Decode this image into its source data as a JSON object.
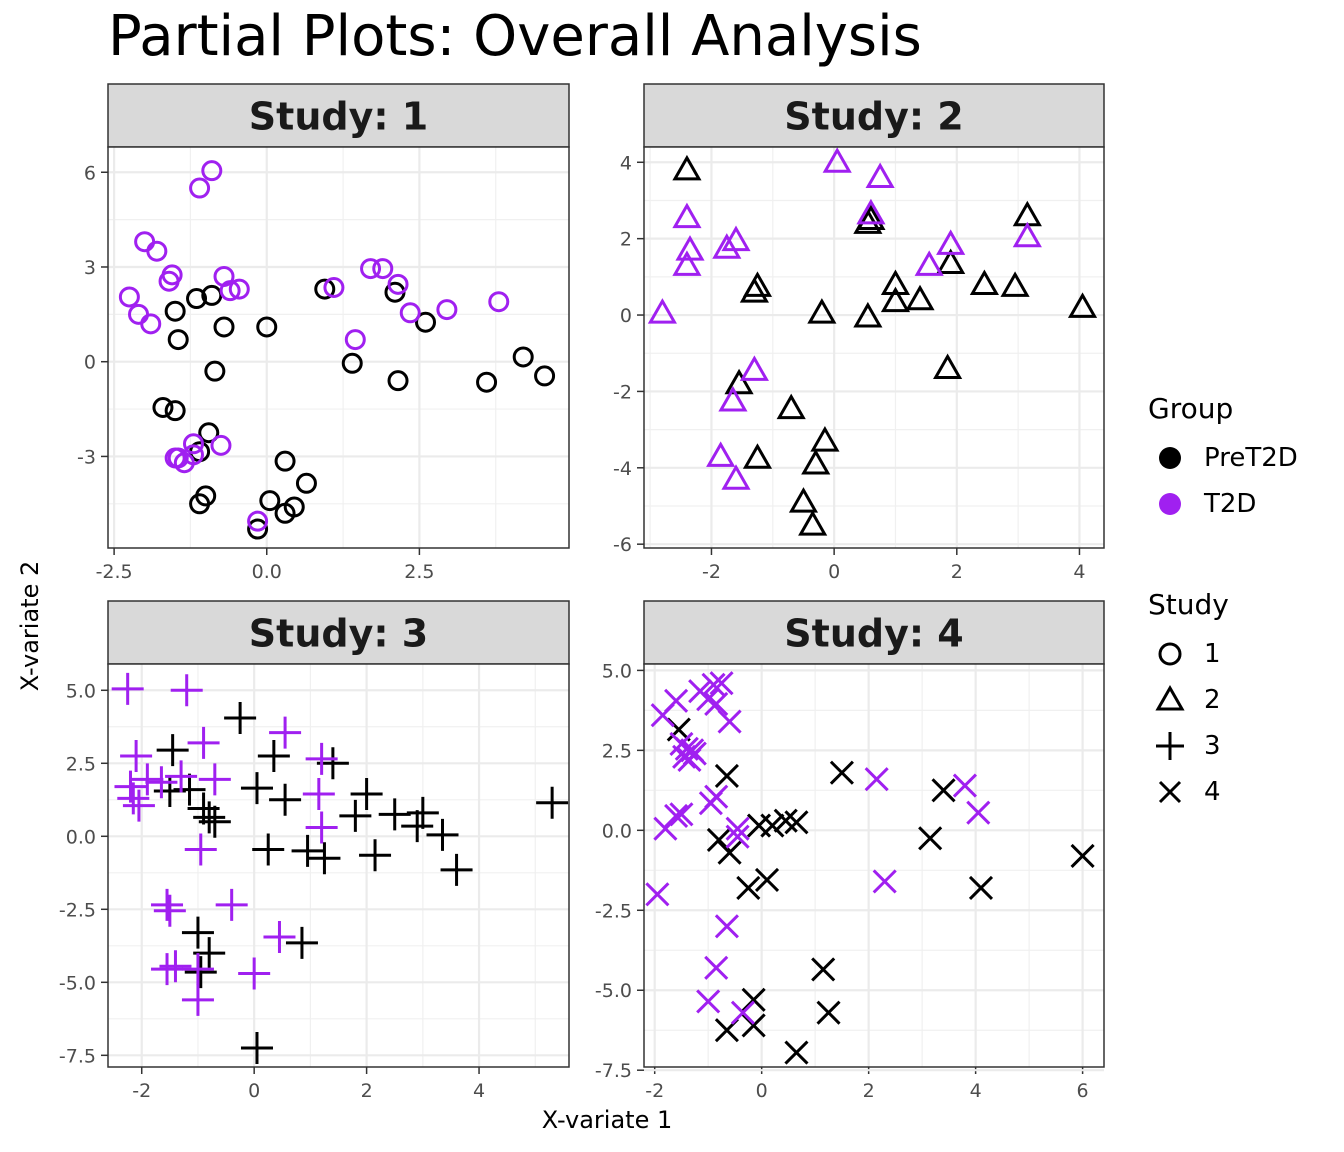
{
  "title": "Partial Plots: Overall Analysis",
  "xlabel": "X-variate 1",
  "ylabel": "X-variate 2",
  "colors": {
    "PreT2D": "#000000",
    "T2D": "#A020F0"
  },
  "legend": {
    "group": {
      "title": "Group",
      "items": [
        {
          "label": "PreT2D",
          "color": "#000000"
        },
        {
          "label": "T2D",
          "color": "#A020F0"
        }
      ]
    },
    "study": {
      "title": "Study",
      "items": [
        {
          "label": "1",
          "shape": "circle"
        },
        {
          "label": "2",
          "shape": "triangle"
        },
        {
          "label": "3",
          "shape": "plus"
        },
        {
          "label": "4",
          "shape": "cross"
        }
      ]
    }
  },
  "chart_data": [
    {
      "type": "scatter",
      "title": "Study: 1",
      "shape": "circle",
      "xlim": [
        -2.6,
        4.95
      ],
      "ylim": [
        -5.9,
        6.8
      ],
      "xticks": [
        -2.5,
        0,
        2.5
      ],
      "xtick_labels": [
        "-2.5",
        "0.0",
        "2.5"
      ],
      "yticks": [
        -3,
        0,
        3,
        6
      ],
      "ytick_labels": [
        "-3",
        "0",
        "3",
        "6"
      ],
      "series": [
        {
          "name": "PreT2D",
          "points": [
            [
              -1.15,
              2.0
            ],
            [
              -0.9,
              2.1
            ],
            [
              -0.7,
              1.1
            ],
            [
              -1.5,
              1.6
            ],
            [
              -1.45,
              0.7
            ],
            [
              0.0,
              1.1
            ],
            [
              0.95,
              2.3
            ],
            [
              2.1,
              2.2
            ],
            [
              2.6,
              1.25
            ],
            [
              1.4,
              -0.05
            ],
            [
              2.15,
              -0.6
            ],
            [
              3.6,
              -0.65
            ],
            [
              4.2,
              0.15
            ],
            [
              4.55,
              -0.45
            ],
            [
              -0.85,
              -0.3
            ],
            [
              -1.7,
              -1.45
            ],
            [
              -1.5,
              -1.55
            ],
            [
              -0.95,
              -2.25
            ],
            [
              -1.1,
              -2.85
            ],
            [
              0.3,
              -3.15
            ],
            [
              0.65,
              -3.85
            ],
            [
              0.05,
              -4.4
            ],
            [
              0.45,
              -4.6
            ],
            [
              0.3,
              -4.8
            ],
            [
              -1.0,
              -4.25
            ],
            [
              -1.1,
              -4.5
            ],
            [
              -0.15,
              -5.3
            ]
          ]
        },
        {
          "name": "T2D",
          "points": [
            [
              -1.1,
              5.5
            ],
            [
              -0.9,
              6.05
            ],
            [
              -2.0,
              3.8
            ],
            [
              -1.8,
              3.5
            ],
            [
              -1.55,
              2.75
            ],
            [
              -1.6,
              2.55
            ],
            [
              -0.7,
              2.7
            ],
            [
              -0.6,
              2.25
            ],
            [
              -0.45,
              2.3
            ],
            [
              -2.25,
              2.05
            ],
            [
              -2.1,
              1.5
            ],
            [
              -1.9,
              1.2
            ],
            [
              1.1,
              2.35
            ],
            [
              1.7,
              2.95
            ],
            [
              1.9,
              2.95
            ],
            [
              2.15,
              2.45
            ],
            [
              2.35,
              1.55
            ],
            [
              2.95,
              1.65
            ],
            [
              3.8,
              1.9
            ],
            [
              1.45,
              0.7
            ],
            [
              -1.2,
              -2.6
            ],
            [
              -0.75,
              -2.65
            ],
            [
              -1.2,
              -2.95
            ],
            [
              -1.45,
              -3.05
            ],
            [
              -1.35,
              -3.2
            ],
            [
              -1.5,
              -3.05
            ],
            [
              -0.15,
              -5.05
            ]
          ]
        }
      ]
    },
    {
      "type": "scatter",
      "title": "Study: 2",
      "shape": "triangle",
      "xlim": [
        -3.1,
        4.4
      ],
      "ylim": [
        -6.1,
        4.4
      ],
      "xticks": [
        -2,
        0,
        2,
        4
      ],
      "xtick_labels": [
        "-2",
        "0",
        "2",
        "4"
      ],
      "yticks": [
        -6,
        -4,
        -2,
        0,
        2,
        4
      ],
      "ytick_labels": [
        "-6",
        "-4",
        "-2",
        "0",
        "2",
        "4"
      ],
      "series": [
        {
          "name": "PreT2D",
          "points": [
            [
              -2.4,
              3.8
            ],
            [
              0.55,
              2.4
            ],
            [
              0.6,
              2.5
            ],
            [
              3.15,
              2.6
            ],
            [
              -1.3,
              0.6
            ],
            [
              -1.25,
              0.75
            ],
            [
              1.0,
              0.8
            ],
            [
              1.0,
              0.35
            ],
            [
              1.4,
              0.4
            ],
            [
              -0.2,
              0.05
            ],
            [
              0.55,
              -0.05
            ],
            [
              2.45,
              0.8
            ],
            [
              2.95,
              0.75
            ],
            [
              4.05,
              0.2
            ],
            [
              1.9,
              1.35
            ],
            [
              1.85,
              -1.4
            ],
            [
              -1.55,
              -1.8
            ],
            [
              -0.7,
              -2.45
            ],
            [
              -0.15,
              -3.3
            ],
            [
              -0.3,
              -3.9
            ],
            [
              -1.25,
              -3.75
            ],
            [
              -0.5,
              -4.9
            ],
            [
              -0.35,
              -5.5
            ]
          ]
        },
        {
          "name": "T2D",
          "points": [
            [
              0.05,
              4.0
            ],
            [
              0.75,
              3.6
            ],
            [
              0.6,
              2.65
            ],
            [
              -2.4,
              2.55
            ],
            [
              -2.35,
              1.7
            ],
            [
              -2.4,
              1.3
            ],
            [
              -1.75,
              1.75
            ],
            [
              -1.6,
              1.95
            ],
            [
              1.9,
              1.85
            ],
            [
              3.15,
              2.05
            ],
            [
              1.55,
              1.3
            ],
            [
              -2.8,
              0.05
            ],
            [
              -1.3,
              -1.45
            ],
            [
              -1.65,
              -2.25
            ],
            [
              -1.85,
              -3.7
            ],
            [
              -1.6,
              -4.3
            ]
          ]
        }
      ]
    },
    {
      "type": "scatter",
      "title": "Study: 3",
      "shape": "plus",
      "xlim": [
        -2.6,
        5.6
      ],
      "ylim": [
        -7.9,
        5.9
      ],
      "xticks": [
        -2,
        0,
        2,
        4
      ],
      "xtick_labels": [
        "-2",
        "0",
        "2",
        "4"
      ],
      "yticks": [
        -7.5,
        -5,
        -2.5,
        0,
        2.5,
        5
      ],
      "ytick_labels": [
        "-7.5",
        "-5.0",
        "-2.5",
        "0.0",
        "2.5",
        "5.0"
      ],
      "series": [
        {
          "name": "PreT2D",
          "points": [
            [
              -0.25,
              4.05
            ],
            [
              -1.45,
              2.95
            ],
            [
              0.35,
              2.75
            ],
            [
              1.4,
              2.5
            ],
            [
              -1.5,
              1.55
            ],
            [
              -1.15,
              1.6
            ],
            [
              0.05,
              1.65
            ],
            [
              0.55,
              1.25
            ],
            [
              -0.9,
              0.95
            ],
            [
              -0.8,
              0.65
            ],
            [
              -0.7,
              0.5
            ],
            [
              2.0,
              1.45
            ],
            [
              1.8,
              0.7
            ],
            [
              2.5,
              0.75
            ],
            [
              3.0,
              0.8
            ],
            [
              2.9,
              0.35
            ],
            [
              3.35,
              0.05
            ],
            [
              3.6,
              -1.15
            ],
            [
              0.25,
              -0.45
            ],
            [
              0.95,
              -0.5
            ],
            [
              1.25,
              -0.75
            ],
            [
              2.15,
              -0.65
            ],
            [
              5.3,
              1.15
            ],
            [
              -1.0,
              -3.3
            ],
            [
              -0.8,
              -4.0
            ],
            [
              -0.95,
              -4.65
            ],
            [
              0.85,
              -3.65
            ],
            [
              0.05,
              -7.25
            ]
          ]
        },
        {
          "name": "T2D",
          "points": [
            [
              -2.25,
              5.05
            ],
            [
              -1.2,
              5.0
            ],
            [
              -2.1,
              2.75
            ],
            [
              -0.9,
              3.2
            ],
            [
              0.55,
              3.55
            ],
            [
              1.2,
              2.65
            ],
            [
              -2.2,
              1.7
            ],
            [
              -1.9,
              1.95
            ],
            [
              -1.65,
              1.85
            ],
            [
              -1.3,
              2.05
            ],
            [
              -0.7,
              1.95
            ],
            [
              -2.15,
              1.3
            ],
            [
              -2.05,
              1.05
            ],
            [
              1.15,
              1.45
            ],
            [
              1.2,
              0.3
            ],
            [
              -0.95,
              -0.45
            ],
            [
              -1.55,
              -2.35
            ],
            [
              -1.5,
              -2.55
            ],
            [
              -0.4,
              -2.35
            ],
            [
              0.45,
              -3.45
            ],
            [
              -1.55,
              -4.55
            ],
            [
              -1.4,
              -4.45
            ],
            [
              -1.0,
              -4.55
            ],
            [
              0.0,
              -4.7
            ],
            [
              -1.0,
              -5.6
            ]
          ]
        }
      ]
    },
    {
      "type": "scatter",
      "title": "Study: 4",
      "shape": "cross",
      "xlim": [
        -2.2,
        6.4
      ],
      "ylim": [
        -7.4,
        5.2
      ],
      "xticks": [
        -2,
        0,
        2,
        4,
        6
      ],
      "xtick_labels": [
        "-2",
        "0",
        "2",
        "4",
        "6"
      ],
      "yticks": [
        -7.5,
        -5,
        -2.5,
        0,
        2.5,
        5
      ],
      "ytick_labels": [
        "-7.5",
        "-5.0",
        "-2.5",
        "0.0",
        "2.5",
        "5.0"
      ],
      "series": [
        {
          "name": "PreT2D",
          "points": [
            [
              -1.55,
              3.15
            ],
            [
              -0.65,
              1.7
            ],
            [
              1.5,
              1.8
            ],
            [
              3.4,
              1.25
            ],
            [
              -0.8,
              -0.3
            ],
            [
              -0.6,
              -0.7
            ],
            [
              -0.05,
              0.15
            ],
            [
              0.2,
              0.15
            ],
            [
              0.45,
              0.3
            ],
            [
              0.65,
              0.25
            ],
            [
              3.15,
              -0.25
            ],
            [
              6.0,
              -0.8
            ],
            [
              -0.25,
              -1.8
            ],
            [
              0.1,
              -1.55
            ],
            [
              4.1,
              -1.8
            ],
            [
              1.15,
              -4.35
            ],
            [
              -0.15,
              -5.3
            ],
            [
              -0.65,
              -6.25
            ],
            [
              -0.15,
              -6.1
            ],
            [
              1.25,
              -5.7
            ],
            [
              0.65,
              -6.95
            ]
          ]
        },
        {
          "name": "T2D",
          "points": [
            [
              -1.15,
              4.35
            ],
            [
              -0.9,
              4.55
            ],
            [
              -0.75,
              4.6
            ],
            [
              -1.0,
              4.1
            ],
            [
              -0.85,
              3.95
            ],
            [
              -0.6,
              3.4
            ],
            [
              -1.6,
              4.05
            ],
            [
              -1.85,
              3.6
            ],
            [
              -1.5,
              2.7
            ],
            [
              -1.4,
              2.55
            ],
            [
              -1.3,
              2.5
            ],
            [
              -1.45,
              2.3
            ],
            [
              -1.35,
              2.2
            ],
            [
              -1.25,
              2.4
            ],
            [
              -1.6,
              0.45
            ],
            [
              -1.5,
              0.5
            ],
            [
              -1.8,
              0.05
            ],
            [
              -0.95,
              0.85
            ],
            [
              -0.85,
              1.05
            ],
            [
              -0.45,
              0.05
            ],
            [
              -0.45,
              -0.2
            ],
            [
              2.15,
              1.6
            ],
            [
              3.8,
              1.4
            ],
            [
              4.05,
              0.55
            ],
            [
              2.3,
              -1.6
            ],
            [
              -1.95,
              -2.0
            ],
            [
              -0.65,
              -3.0
            ],
            [
              -0.85,
              -4.3
            ],
            [
              -1.0,
              -5.35
            ],
            [
              -0.35,
              -5.7
            ]
          ]
        }
      ]
    }
  ]
}
